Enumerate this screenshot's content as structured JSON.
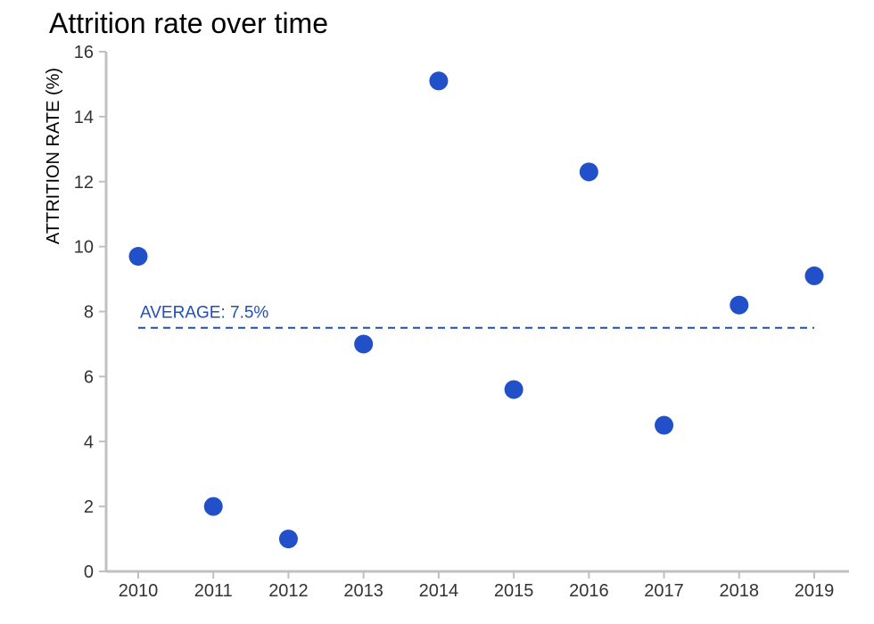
{
  "chart_data": {
    "type": "scatter",
    "title": "Attrition rate over time",
    "xlabel": "",
    "ylabel": "ATTRITION RATE (%)",
    "x_tick_labels": [
      "2010",
      "2011",
      "2012",
      "2013",
      "2014",
      "2015",
      "2016",
      "2017",
      "2018",
      "2019"
    ],
    "y_ticks": [
      0,
      2,
      4,
      6,
      8,
      10,
      12,
      14,
      16
    ],
    "ylim": [
      0,
      16
    ],
    "grid": false,
    "series": [
      {
        "x": [
          2010,
          2011,
          2012,
          2013,
          2014,
          2015,
          2016,
          2017,
          2018,
          2019
        ],
        "y": [
          9.7,
          2.0,
          1.0,
          7.0,
          15.1,
          5.6,
          12.3,
          4.5,
          8.2,
          9.1
        ]
      }
    ],
    "reference_line": {
      "value": 7.5,
      "label": "AVERAGE: 7.5%",
      "style": "dashed"
    },
    "colors": {
      "points": "#2150c8",
      "average_line": "#1f4fb8",
      "axis": "#c0c0c0",
      "tick_text": "#333333"
    }
  }
}
